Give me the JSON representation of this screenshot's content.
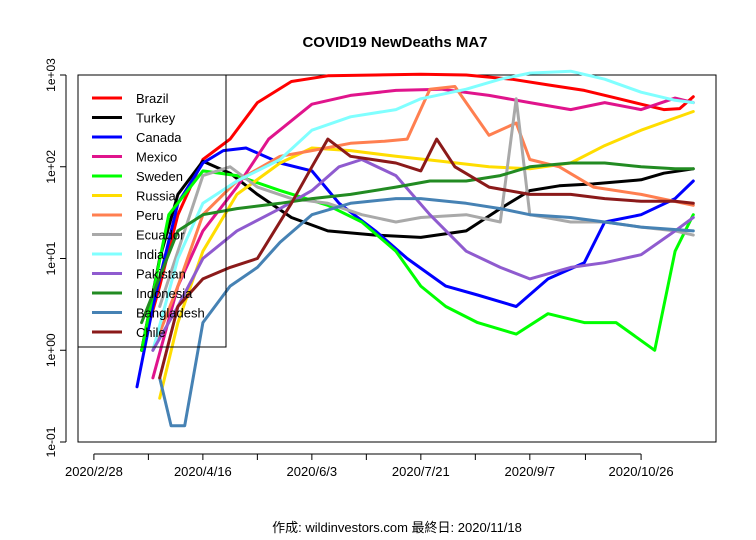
{
  "chart_data": {
    "type": "line",
    "title": "COVID19 NewDeaths MA7",
    "xlabel": "",
    "ylabel": "",
    "y_scale": "log10",
    "ylim": [
      0.1,
      1000
    ],
    "y_ticks": [
      {
        "value": 0.1,
        "label": "1e-01"
      },
      {
        "value": 1,
        "label": "1e+00"
      },
      {
        "value": 10,
        "label": "1e+01"
      },
      {
        "value": 100,
        "label": "1e+02"
      },
      {
        "value": 1000,
        "label": "1e+03"
      }
    ],
    "x_range": [
      "2020-02-21",
      "2020-11-28"
    ],
    "x_ticks": [
      {
        "date": "2020-02-28",
        "label": "2020/2/28"
      },
      {
        "date": "2020-04-16",
        "label": "2020/4/16"
      },
      {
        "date": "2020-06-03",
        "label": "2020/6/3"
      },
      {
        "date": "2020-07-21",
        "label": "2020/7/21"
      },
      {
        "date": "2020-09-07",
        "label": "2020/9/7"
      },
      {
        "date": "2020-10-26",
        "label": "2020/10/26"
      }
    ],
    "legend_position": "top-left",
    "series": [
      {
        "name": "Brazil",
        "color": "#ff0000",
        "points": [
          [
            "2020-03-20",
            1
          ],
          [
            "2020-03-28",
            5
          ],
          [
            "2020-04-05",
            30
          ],
          [
            "2020-04-16",
            120
          ],
          [
            "2020-04-28",
            200
          ],
          [
            "2020-05-10",
            500
          ],
          [
            "2020-05-25",
            850
          ],
          [
            "2020-06-10",
            980
          ],
          [
            "2020-07-01",
            1000
          ],
          [
            "2020-07-21",
            1020
          ],
          [
            "2020-08-10",
            1000
          ],
          [
            "2020-08-30",
            900
          ],
          [
            "2020-09-15",
            780
          ],
          [
            "2020-10-01",
            680
          ],
          [
            "2020-10-15",
            560
          ],
          [
            "2020-10-26",
            480
          ],
          [
            "2020-11-05",
            420
          ],
          [
            "2020-11-12",
            430
          ],
          [
            "2020-11-18",
            580
          ]
        ]
      },
      {
        "name": "Turkey",
        "color": "#000000",
        "points": [
          [
            "2020-03-20",
            1
          ],
          [
            "2020-03-28",
            10
          ],
          [
            "2020-04-05",
            50
          ],
          [
            "2020-04-16",
            115
          ],
          [
            "2020-04-28",
            85
          ],
          [
            "2020-05-10",
            50
          ],
          [
            "2020-05-25",
            28
          ],
          [
            "2020-06-10",
            20
          ],
          [
            "2020-07-01",
            18
          ],
          [
            "2020-07-21",
            17
          ],
          [
            "2020-08-10",
            20
          ],
          [
            "2020-08-25",
            35
          ],
          [
            "2020-09-07",
            55
          ],
          [
            "2020-09-20",
            62
          ],
          [
            "2020-10-05",
            65
          ],
          [
            "2020-10-26",
            72
          ],
          [
            "2020-11-05",
            85
          ],
          [
            "2020-11-18",
            95
          ]
        ]
      },
      {
        "name": "Canada",
        "color": "#0000ff",
        "points": [
          [
            "2020-03-18",
            0.4
          ],
          [
            "2020-03-25",
            3
          ],
          [
            "2020-04-05",
            40
          ],
          [
            "2020-04-16",
            110
          ],
          [
            "2020-04-25",
            150
          ],
          [
            "2020-05-05",
            160
          ],
          [
            "2020-05-20",
            110
          ],
          [
            "2020-06-03",
            90
          ],
          [
            "2020-06-15",
            40
          ],
          [
            "2020-07-01",
            20
          ],
          [
            "2020-07-15",
            10
          ],
          [
            "2020-08-01",
            5
          ],
          [
            "2020-08-15",
            4
          ],
          [
            "2020-09-01",
            3
          ],
          [
            "2020-09-15",
            6
          ],
          [
            "2020-10-01",
            9
          ],
          [
            "2020-10-10",
            25
          ],
          [
            "2020-10-26",
            30
          ],
          [
            "2020-11-10",
            45
          ],
          [
            "2020-11-18",
            70
          ]
        ]
      },
      {
        "name": "Mexico",
        "color": "#e0148c",
        "points": [
          [
            "2020-03-25",
            0.5
          ],
          [
            "2020-04-05",
            5
          ],
          [
            "2020-04-16",
            20
          ],
          [
            "2020-05-01",
            60
          ],
          [
            "2020-05-15",
            200
          ],
          [
            "2020-06-03",
            480
          ],
          [
            "2020-06-20",
            600
          ],
          [
            "2020-07-10",
            680
          ],
          [
            "2020-07-30",
            700
          ],
          [
            "2020-08-20",
            600
          ],
          [
            "2020-09-07",
            500
          ],
          [
            "2020-09-25",
            420
          ],
          [
            "2020-10-10",
            500
          ],
          [
            "2020-10-26",
            420
          ],
          [
            "2020-11-10",
            560
          ],
          [
            "2020-11-18",
            500
          ]
        ]
      },
      {
        "name": "Sweden",
        "color": "#00ff00",
        "points": [
          [
            "2020-03-20",
            1
          ],
          [
            "2020-04-01",
            30
          ],
          [
            "2020-04-16",
            90
          ],
          [
            "2020-05-01",
            80
          ],
          [
            "2020-05-20",
            55
          ],
          [
            "2020-06-10",
            38
          ],
          [
            "2020-06-25",
            25
          ],
          [
            "2020-07-10",
            12
          ],
          [
            "2020-07-21",
            5
          ],
          [
            "2020-08-01",
            3
          ],
          [
            "2020-08-15",
            2
          ],
          [
            "2020-09-01",
            1.5
          ],
          [
            "2020-09-15",
            2.5
          ],
          [
            "2020-10-01",
            2
          ],
          [
            "2020-10-15",
            2
          ],
          [
            "2020-11-01",
            1
          ],
          [
            "2020-11-10",
            12
          ],
          [
            "2020-11-18",
            30
          ]
        ]
      },
      {
        "name": "Russia",
        "color": "#ffdd00",
        "points": [
          [
            "2020-03-28",
            0.3
          ],
          [
            "2020-04-05",
            2
          ],
          [
            "2020-04-16",
            12
          ],
          [
            "2020-05-01",
            50
          ],
          [
            "2020-05-20",
            110
          ],
          [
            "2020-06-03",
            160
          ],
          [
            "2020-06-20",
            150
          ],
          [
            "2020-07-10",
            130
          ],
          [
            "2020-07-30",
            115
          ],
          [
            "2020-08-20",
            100
          ],
          [
            "2020-09-07",
            95
          ],
          [
            "2020-09-25",
            110
          ],
          [
            "2020-10-10",
            170
          ],
          [
            "2020-10-26",
            250
          ],
          [
            "2020-11-10",
            340
          ],
          [
            "2020-11-18",
            400
          ]
        ]
      },
      {
        "name": "Peru",
        "color": "#ff7f50",
        "points": [
          [
            "2020-03-25",
            1
          ],
          [
            "2020-04-05",
            5
          ],
          [
            "2020-04-16",
            30
          ],
          [
            "2020-05-01",
            70
          ],
          [
            "2020-05-20",
            130
          ],
          [
            "2020-06-03",
            150
          ],
          [
            "2020-06-20",
            180
          ],
          [
            "2020-07-05",
            190
          ],
          [
            "2020-07-15",
            200
          ],
          [
            "2020-07-25",
            700
          ],
          [
            "2020-08-05",
            750
          ],
          [
            "2020-08-20",
            220
          ],
          [
            "2020-09-01",
            300
          ],
          [
            "2020-09-07",
            120
          ],
          [
            "2020-09-20",
            100
          ],
          [
            "2020-10-05",
            60
          ],
          [
            "2020-10-26",
            50
          ],
          [
            "2020-11-18",
            38
          ]
        ]
      },
      {
        "name": "Ecuador",
        "color": "#a9a9a9",
        "points": [
          [
            "2020-03-28",
            3
          ],
          [
            "2020-04-05",
            12
          ],
          [
            "2020-04-16",
            80
          ],
          [
            "2020-04-28",
            100
          ],
          [
            "2020-05-10",
            60
          ],
          [
            "2020-05-25",
            45
          ],
          [
            "2020-06-10",
            40
          ],
          [
            "2020-06-25",
            30
          ],
          [
            "2020-07-10",
            25
          ],
          [
            "2020-07-21",
            28
          ],
          [
            "2020-08-10",
            30
          ],
          [
            "2020-08-25",
            25
          ],
          [
            "2020-09-01",
            550
          ],
          [
            "2020-09-07",
            30
          ],
          [
            "2020-09-25",
            25
          ],
          [
            "2020-10-10",
            25
          ],
          [
            "2020-10-26",
            22
          ],
          [
            "2020-11-10",
            20
          ],
          [
            "2020-11-18",
            18
          ]
        ]
      },
      {
        "name": "India",
        "color": "#80ffff",
        "points": [
          [
            "2020-03-25",
            1
          ],
          [
            "2020-04-05",
            10
          ],
          [
            "2020-04-16",
            40
          ],
          [
            "2020-05-01",
            70
          ],
          [
            "2020-05-20",
            120
          ],
          [
            "2020-06-03",
            250
          ],
          [
            "2020-06-20",
            350
          ],
          [
            "2020-07-10",
            420
          ],
          [
            "2020-07-21",
            550
          ],
          [
            "2020-08-10",
            700
          ],
          [
            "2020-08-25",
            900
          ],
          [
            "2020-09-07",
            1050
          ],
          [
            "2020-09-25",
            1100
          ],
          [
            "2020-10-10",
            900
          ],
          [
            "2020-10-26",
            650
          ],
          [
            "2020-11-10",
            530
          ],
          [
            "2020-11-18",
            500
          ]
        ]
      },
      {
        "name": "Pakistan",
        "color": "#8f5bcf",
        "points": [
          [
            "2020-03-25",
            1
          ],
          [
            "2020-04-05",
            3
          ],
          [
            "2020-04-16",
            10
          ],
          [
            "2020-05-01",
            20
          ],
          [
            "2020-05-20",
            35
          ],
          [
            "2020-06-03",
            55
          ],
          [
            "2020-06-15",
            100
          ],
          [
            "2020-06-25",
            120
          ],
          [
            "2020-07-10",
            80
          ],
          [
            "2020-07-25",
            30
          ],
          [
            "2020-08-10",
            12
          ],
          [
            "2020-08-25",
            8
          ],
          [
            "2020-09-07",
            6
          ],
          [
            "2020-09-25",
            8
          ],
          [
            "2020-10-10",
            9
          ],
          [
            "2020-10-26",
            11
          ],
          [
            "2020-11-10",
            20
          ],
          [
            "2020-11-18",
            28
          ]
        ]
      },
      {
        "name": "Indonesia",
        "color": "#228b22",
        "points": [
          [
            "2020-03-20",
            2
          ],
          [
            "2020-04-05",
            20
          ],
          [
            "2020-04-16",
            30
          ],
          [
            "2020-05-01",
            35
          ],
          [
            "2020-05-20",
            40
          ],
          [
            "2020-06-03",
            45
          ],
          [
            "2020-06-20",
            50
          ],
          [
            "2020-07-10",
            60
          ],
          [
            "2020-07-25",
            70
          ],
          [
            "2020-08-10",
            70
          ],
          [
            "2020-08-25",
            80
          ],
          [
            "2020-09-07",
            100
          ],
          [
            "2020-09-25",
            110
          ],
          [
            "2020-10-10",
            110
          ],
          [
            "2020-10-26",
            100
          ],
          [
            "2020-11-10",
            95
          ],
          [
            "2020-11-18",
            95
          ]
        ]
      },
      {
        "name": "Bangladesh",
        "color": "#4682b4",
        "points": [
          [
            "2020-03-28",
            0.5
          ],
          [
            "2020-04-02",
            0.15
          ],
          [
            "2020-04-08",
            0.15
          ],
          [
            "2020-04-16",
            2
          ],
          [
            "2020-04-28",
            5
          ],
          [
            "2020-05-10",
            8
          ],
          [
            "2020-05-20",
            15
          ],
          [
            "2020-06-03",
            30
          ],
          [
            "2020-06-20",
            40
          ],
          [
            "2020-07-10",
            45
          ],
          [
            "2020-07-21",
            45
          ],
          [
            "2020-08-10",
            40
          ],
          [
            "2020-08-25",
            35
          ],
          [
            "2020-09-07",
            30
          ],
          [
            "2020-09-25",
            28
          ],
          [
            "2020-10-10",
            25
          ],
          [
            "2020-10-26",
            22
          ],
          [
            "2020-11-18",
            20
          ]
        ]
      },
      {
        "name": "Chile",
        "color": "#8b1a1a",
        "points": [
          [
            "2020-03-28",
            0.5
          ],
          [
            "2020-04-05",
            3
          ],
          [
            "2020-04-16",
            6
          ],
          [
            "2020-04-28",
            8
          ],
          [
            "2020-05-10",
            10
          ],
          [
            "2020-05-25",
            40
          ],
          [
            "2020-06-03",
            100
          ],
          [
            "2020-06-10",
            200
          ],
          [
            "2020-06-20",
            130
          ],
          [
            "2020-07-10",
            110
          ],
          [
            "2020-07-21",
            90
          ],
          [
            "2020-07-28",
            200
          ],
          [
            "2020-08-05",
            100
          ],
          [
            "2020-08-20",
            60
          ],
          [
            "2020-09-07",
            50
          ],
          [
            "2020-09-25",
            50
          ],
          [
            "2020-10-10",
            45
          ],
          [
            "2020-10-26",
            42
          ],
          [
            "2020-11-10",
            42
          ],
          [
            "2020-11-18",
            40
          ]
        ]
      }
    ],
    "footer": "作成: wildinvestors.com 最終日: 2020/11/18"
  }
}
